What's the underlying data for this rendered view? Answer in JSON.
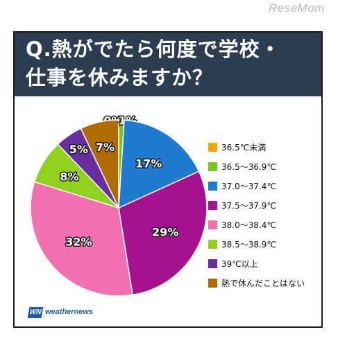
{
  "watermark": "ReseMom",
  "header": {
    "title_line1": "Q.熱がでたら何度で学校・",
    "title_line2": "仕事を休みますか？"
  },
  "chart_data": {
    "type": "pie",
    "start": "12 o'clock, clockwise",
    "categories": [
      "36.5℃未満",
      "36.5～36.9℃",
      "37.0～37.4℃",
      "37.5～37.9℃",
      "38.0～38.4℃",
      "38.5～38.9℃",
      "39℃以上",
      "熱で休んだことはない"
    ],
    "values": [
      0,
      1,
      17,
      29,
      32,
      8,
      5,
      7
    ],
    "labels": [
      "0%",
      "1%",
      "17%",
      "29%",
      "32%",
      "8%",
      "5%",
      "7%"
    ],
    "colors": [
      "#f5a800",
      "#7ac51d",
      "#1f7bd0",
      "#a4128f",
      "#f070b0",
      "#8fd11c",
      "#6a2f9e",
      "#b06b05"
    ]
  },
  "logo": {
    "badge": "WN",
    "text": "weathernews"
  }
}
